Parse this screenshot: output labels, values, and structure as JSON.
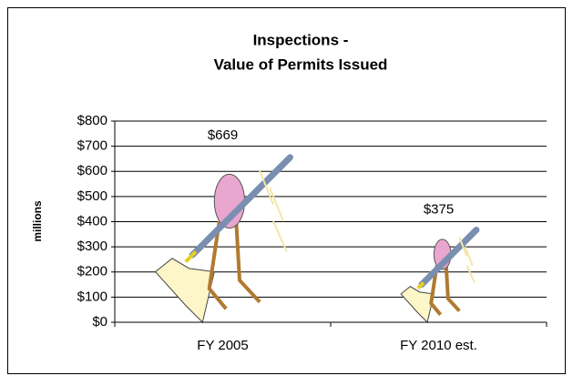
{
  "chart_data": {
    "type": "pictogram-bar",
    "title": [
      "Inspections -",
      "Value of Permits Issued"
    ],
    "y_label": "millions",
    "categories": [
      "FY 2005",
      "FY 2010 est."
    ],
    "values": [
      669,
      375
    ],
    "value_labels": [
      "$669",
      "$375"
    ],
    "ylim": [
      0,
      800
    ],
    "yticks": [
      {
        "value": 0,
        "label": "$0"
      },
      {
        "value": 100,
        "label": "$100"
      },
      {
        "value": 200,
        "label": "$200"
      },
      {
        "value": 300,
        "label": "$300"
      },
      {
        "value": 400,
        "label": "$400"
      },
      {
        "value": 500,
        "label": "$500"
      },
      {
        "value": 600,
        "label": "$600"
      },
      {
        "value": 700,
        "label": "$700"
      },
      {
        "value": 800,
        "label": "$800"
      }
    ],
    "grid": true
  }
}
